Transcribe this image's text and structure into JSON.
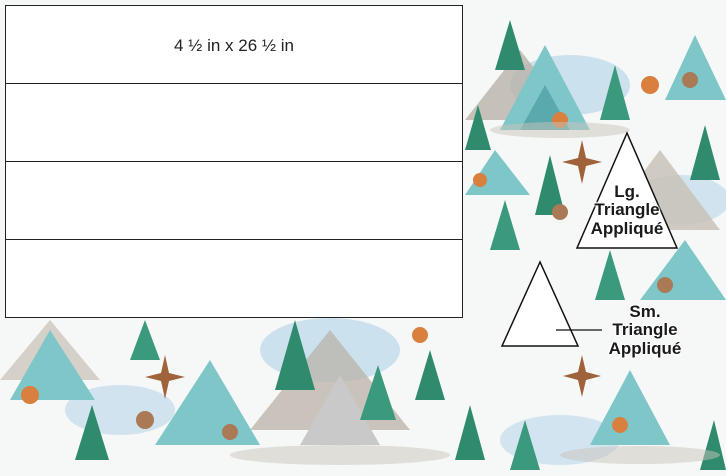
{
  "colors": {
    "background": "#ffffff",
    "strip_fill": "#ffffff",
    "strip_border": "#222222",
    "triangle_fill": "#ffffff",
    "triangle_stroke": "#111111",
    "fabric_teal": "#7fc6c9",
    "fabric_pine": "#2f8a6e",
    "fabric_mountain": "#b9b2a8",
    "fabric_sky": "#a9cde8",
    "fabric_fox": "#d9803f"
  },
  "strips": [
    {
      "label": "4 ½ in x 26 ½ in"
    },
    {
      "label": ""
    },
    {
      "label": ""
    },
    {
      "label": ""
    }
  ],
  "triangles": {
    "large": {
      "label_line1": "Lg.",
      "label_line2": "Triangle",
      "label_line3": "Appliqué"
    },
    "small": {
      "label_line1": "Sm.",
      "label_line2": "Triangle",
      "label_line3": "Appliqué"
    }
  }
}
